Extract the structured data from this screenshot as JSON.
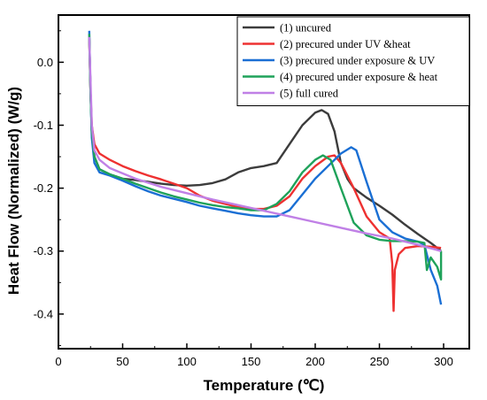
{
  "chart_data": {
    "type": "line",
    "xlabel": "Temperature (℃)",
    "ylabel": "Heat Flow (Normalized) (W/g)",
    "xlim": [
      0,
      320
    ],
    "ylim": [
      -0.455,
      0.075
    ],
    "x_ticks": [
      0,
      50,
      100,
      150,
      200,
      250,
      300
    ],
    "y_ticks": [
      0.0,
      -0.1,
      -0.2,
      -0.3,
      -0.4
    ],
    "y_tick_labels": [
      "0.0",
      "-0.1",
      "-0.2",
      "-0.3",
      "-0.4"
    ],
    "grid": false,
    "legend_position": "top-right",
    "series": [
      {
        "name": "(1) uncured",
        "color": "#3c3c3c",
        "points": [
          [
            24,
            0.04
          ],
          [
            25,
            -0.05
          ],
          [
            26,
            -0.11
          ],
          [
            28,
            -0.15
          ],
          [
            32,
            -0.17
          ],
          [
            40,
            -0.178
          ],
          [
            50,
            -0.185
          ],
          [
            60,
            -0.187
          ],
          [
            70,
            -0.19
          ],
          [
            80,
            -0.193
          ],
          [
            90,
            -0.195
          ],
          [
            100,
            -0.196
          ],
          [
            110,
            -0.195
          ],
          [
            120,
            -0.192
          ],
          [
            130,
            -0.186
          ],
          [
            140,
            -0.175
          ],
          [
            150,
            -0.168
          ],
          [
            160,
            -0.165
          ],
          [
            170,
            -0.16
          ],
          [
            180,
            -0.13
          ],
          [
            190,
            -0.1
          ],
          [
            200,
            -0.08
          ],
          [
            205,
            -0.076
          ],
          [
            210,
            -0.082
          ],
          [
            215,
            -0.11
          ],
          [
            220,
            -0.16
          ],
          [
            225,
            -0.185
          ],
          [
            230,
            -0.2
          ],
          [
            240,
            -0.215
          ],
          [
            250,
            -0.228
          ],
          [
            260,
            -0.242
          ],
          [
            270,
            -0.258
          ],
          [
            280,
            -0.273
          ],
          [
            290,
            -0.287
          ],
          [
            297,
            -0.298
          ],
          [
            298,
            -0.3
          ]
        ]
      },
      {
        "name": "(2) precured under UV &heat",
        "color": "#ee3131",
        "points": [
          [
            24,
            0.04
          ],
          [
            25,
            -0.05
          ],
          [
            26,
            -0.1
          ],
          [
            28,
            -0.13
          ],
          [
            32,
            -0.145
          ],
          [
            40,
            -0.155
          ],
          [
            50,
            -0.165
          ],
          [
            60,
            -0.173
          ],
          [
            70,
            -0.18
          ],
          [
            80,
            -0.186
          ],
          [
            90,
            -0.193
          ],
          [
            100,
            -0.2
          ],
          [
            110,
            -0.212
          ],
          [
            120,
            -0.22
          ],
          [
            130,
            -0.225
          ],
          [
            140,
            -0.23
          ],
          [
            150,
            -0.233
          ],
          [
            160,
            -0.233
          ],
          [
            170,
            -0.228
          ],
          [
            180,
            -0.213
          ],
          [
            190,
            -0.185
          ],
          [
            200,
            -0.165
          ],
          [
            210,
            -0.15
          ],
          [
            215,
            -0.148
          ],
          [
            220,
            -0.16
          ],
          [
            230,
            -0.2
          ],
          [
            240,
            -0.245
          ],
          [
            250,
            -0.27
          ],
          [
            258,
            -0.28
          ],
          [
            260,
            -0.32
          ],
          [
            261,
            -0.395
          ],
          [
            262,
            -0.33
          ],
          [
            265,
            -0.305
          ],
          [
            270,
            -0.295
          ],
          [
            280,
            -0.292
          ],
          [
            290,
            -0.293
          ],
          [
            298,
            -0.295
          ]
        ]
      },
      {
        "name": "(3) precured under exposure & UV",
        "color": "#1a6fd4",
        "points": [
          [
            24,
            0.05
          ],
          [
            25,
            -0.05
          ],
          [
            26,
            -0.12
          ],
          [
            28,
            -0.16
          ],
          [
            32,
            -0.175
          ],
          [
            40,
            -0.18
          ],
          [
            50,
            -0.188
          ],
          [
            60,
            -0.197
          ],
          [
            70,
            -0.205
          ],
          [
            80,
            -0.212
          ],
          [
            90,
            -0.217
          ],
          [
            100,
            -0.222
          ],
          [
            110,
            -0.228
          ],
          [
            120,
            -0.232
          ],
          [
            130,
            -0.236
          ],
          [
            140,
            -0.24
          ],
          [
            150,
            -0.243
          ],
          [
            160,
            -0.245
          ],
          [
            170,
            -0.245
          ],
          [
            180,
            -0.235
          ],
          [
            190,
            -0.21
          ],
          [
            200,
            -0.185
          ],
          [
            210,
            -0.165
          ],
          [
            220,
            -0.145
          ],
          [
            228,
            -0.135
          ],
          [
            232,
            -0.14
          ],
          [
            240,
            -0.19
          ],
          [
            250,
            -0.25
          ],
          [
            260,
            -0.27
          ],
          [
            270,
            -0.28
          ],
          [
            280,
            -0.285
          ],
          [
            285,
            -0.29
          ],
          [
            290,
            -0.33
          ],
          [
            295,
            -0.355
          ],
          [
            298,
            -0.385
          ]
        ]
      },
      {
        "name": "(4) precured under exposure & heat",
        "color": "#1fa25a",
        "points": [
          [
            24,
            0.045
          ],
          [
            25,
            -0.05
          ],
          [
            26,
            -0.11
          ],
          [
            28,
            -0.15
          ],
          [
            32,
            -0.17
          ],
          [
            40,
            -0.178
          ],
          [
            50,
            -0.185
          ],
          [
            60,
            -0.193
          ],
          [
            70,
            -0.2
          ],
          [
            80,
            -0.207
          ],
          [
            90,
            -0.213
          ],
          [
            100,
            -0.218
          ],
          [
            110,
            -0.223
          ],
          [
            120,
            -0.227
          ],
          [
            130,
            -0.23
          ],
          [
            140,
            -0.232
          ],
          [
            150,
            -0.235
          ],
          [
            160,
            -0.235
          ],
          [
            170,
            -0.225
          ],
          [
            180,
            -0.205
          ],
          [
            190,
            -0.175
          ],
          [
            200,
            -0.155
          ],
          [
            206,
            -0.148
          ],
          [
            212,
            -0.155
          ],
          [
            220,
            -0.2
          ],
          [
            230,
            -0.255
          ],
          [
            240,
            -0.275
          ],
          [
            250,
            -0.282
          ],
          [
            260,
            -0.284
          ],
          [
            270,
            -0.284
          ],
          [
            280,
            -0.285
          ],
          [
            285,
            -0.287
          ],
          [
            287,
            -0.33
          ],
          [
            290,
            -0.31
          ],
          [
            295,
            -0.325
          ],
          [
            298,
            -0.345
          ],
          [
            298,
            -0.3
          ]
        ]
      },
      {
        "name": "(5) full cured",
        "color": "#c080e6",
        "points": [
          [
            24,
            0.04
          ],
          [
            26,
            -0.1
          ],
          [
            28,
            -0.14
          ],
          [
            32,
            -0.155
          ],
          [
            40,
            -0.168
          ],
          [
            60,
            -0.185
          ],
          [
            80,
            -0.198
          ],
          [
            100,
            -0.208
          ],
          [
            120,
            -0.218
          ],
          [
            140,
            -0.227
          ],
          [
            160,
            -0.236
          ],
          [
            180,
            -0.245
          ],
          [
            200,
            -0.254
          ],
          [
            220,
            -0.263
          ],
          [
            240,
            -0.272
          ],
          [
            260,
            -0.28
          ],
          [
            280,
            -0.29
          ],
          [
            298,
            -0.3
          ]
        ]
      }
    ]
  }
}
